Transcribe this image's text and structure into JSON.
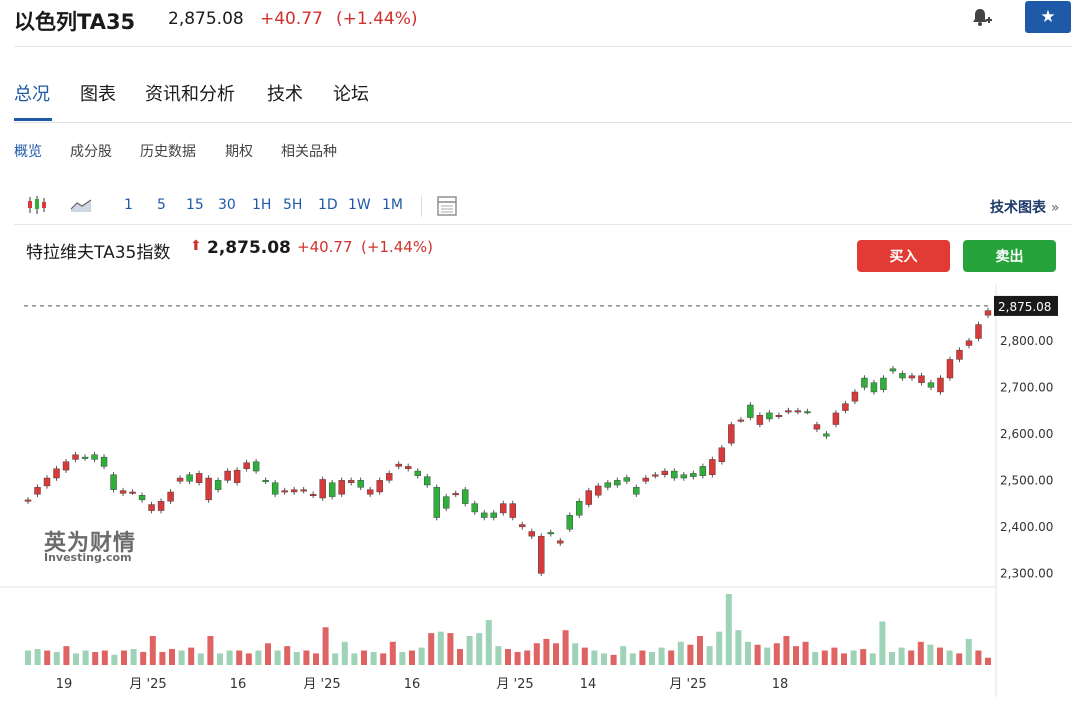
{
  "header": {
    "title": "以色列TA35",
    "price": "2,875.08",
    "change": "+40.77",
    "change_pct": "(+1.44%)",
    "bell_icon": "bell-plus-icon",
    "star_icon": "star-icon",
    "star_glyph": "★"
  },
  "main_tabs": [
    "总况",
    "图表",
    "资讯和分析",
    "技术",
    "论坛"
  ],
  "sub_tabs": [
    "概览",
    "成分股",
    "历史数据",
    "期权",
    "相关品种"
  ],
  "toolbar": {
    "timeframes": [
      "1",
      "5",
      "15",
      "30",
      "1H",
      "5H",
      "1D",
      "1W",
      "1M"
    ],
    "tech_chart": "技术图表",
    "tech_chart_arrow": "»"
  },
  "instrument": {
    "name": "特拉维夫TA35指数",
    "arrow": "⬆",
    "price": "2,875.08",
    "change": "+40.77",
    "change_pct": "(+1.44%)",
    "buy_label": "买入",
    "sell_label": "卖出"
  },
  "watermark": {
    "cn": "英为财情",
    "en": "Investing.com"
  },
  "colors": {
    "up": "#2fae3c",
    "down": "#d63a3a",
    "brand": "#1e5aa8",
    "vol_up": "#9fd3b7",
    "vol_down": "#e06363"
  },
  "chart_data": {
    "type": "candlestick",
    "y_ticks": [
      "2,300.00",
      "2,400.00",
      "2,500.00",
      "2,600.00",
      "2,700.00",
      "2,800.00"
    ],
    "last_price_label": "2,875.08",
    "ylim": [
      2275,
      2920
    ],
    "x_ticks": [
      "19",
      "月 '25",
      "16",
      "月 '25",
      "16",
      "月 '25",
      "14",
      "月 '25",
      "18",
      "",
      ""
    ],
    "candles": [
      [
        2455,
        2458,
        "down"
      ],
      [
        2470,
        2485,
        "down"
      ],
      [
        2488,
        2505,
        "down"
      ],
      [
        2505,
        2525,
        "down"
      ],
      [
        2522,
        2540,
        "down"
      ],
      [
        2545,
        2555,
        "down"
      ],
      [
        2548,
        2550,
        "up"
      ],
      [
        2555,
        2545,
        "up"
      ],
      [
        2550,
        2530,
        "up"
      ],
      [
        2512,
        2480,
        "up"
      ],
      [
        2478,
        2472,
        "down"
      ],
      [
        2475,
        2475,
        "down"
      ],
      [
        2468,
        2458,
        "up"
      ],
      [
        2448,
        2435,
        "down"
      ],
      [
        2435,
        2455,
        "down"
      ],
      [
        2455,
        2475,
        "down"
      ],
      [
        2498,
        2505,
        "down"
      ],
      [
        2512,
        2498,
        "up"
      ],
      [
        2495,
        2515,
        "down"
      ],
      [
        2458,
        2505,
        "down"
      ],
      [
        2500,
        2480,
        "up"
      ],
      [
        2500,
        2520,
        "down"
      ],
      [
        2522,
        2495,
        "down"
      ],
      [
        2525,
        2538,
        "down"
      ],
      [
        2540,
        2520,
        "up"
      ],
      [
        2500,
        2498,
        "up"
      ],
      [
        2495,
        2470,
        "up"
      ],
      [
        2478,
        2475,
        "down"
      ],
      [
        2480,
        2475,
        "down"
      ],
      [
        2478,
        2480,
        "down"
      ],
      [
        2470,
        2468,
        "down"
      ],
      [
        2462,
        2502,
        "down"
      ],
      [
        2495,
        2465,
        "up"
      ],
      [
        2470,
        2500,
        "down"
      ],
      [
        2495,
        2500,
        "down"
      ],
      [
        2500,
        2485,
        "up"
      ],
      [
        2480,
        2470,
        "down"
      ],
      [
        2475,
        2500,
        "down"
      ],
      [
        2500,
        2515,
        "down"
      ],
      [
        2530,
        2535,
        "down"
      ],
      [
        2530,
        2525,
        "down"
      ],
      [
        2520,
        2510,
        "up"
      ],
      [
        2508,
        2490,
        "up"
      ],
      [
        2485,
        2420,
        "up"
      ],
      [
        2440,
        2465,
        "up"
      ],
      [
        2470,
        2472,
        "down"
      ],
      [
        2480,
        2450,
        "up"
      ],
      [
        2450,
        2432,
        "up"
      ],
      [
        2430,
        2420,
        "up"
      ],
      [
        2420,
        2430,
        "up"
      ],
      [
        2430,
        2450,
        "down"
      ],
      [
        2450,
        2420,
        "down"
      ],
      [
        2405,
        2400,
        "down"
      ],
      [
        2390,
        2380,
        "down"
      ],
      [
        2380,
        2300,
        "down"
      ],
      [
        2385,
        2388,
        "up"
      ],
      [
        2365,
        2370,
        "down"
      ],
      [
        2395,
        2425,
        "up"
      ],
      [
        2455,
        2425,
        "up"
      ],
      [
        2448,
        2478,
        "down"
      ],
      [
        2468,
        2488,
        "down"
      ],
      [
        2485,
        2495,
        "up"
      ],
      [
        2500,
        2490,
        "up"
      ],
      [
        2498,
        2506,
        "up"
      ],
      [
        2470,
        2485,
        "up"
      ],
      [
        2498,
        2505,
        "down"
      ],
      [
        2510,
        2512,
        "down"
      ],
      [
        2512,
        2520,
        "down"
      ],
      [
        2520,
        2505,
        "up"
      ],
      [
        2505,
        2512,
        "up"
      ],
      [
        2508,
        2515,
        "up"
      ],
      [
        2530,
        2510,
        "up"
      ],
      [
        2512,
        2545,
        "down"
      ],
      [
        2540,
        2570,
        "down"
      ],
      [
        2580,
        2620,
        "down"
      ],
      [
        2630,
        2630,
        "down"
      ],
      [
        2635,
        2662,
        "up"
      ],
      [
        2620,
        2640,
        "down"
      ],
      [
        2632,
        2645,
        "up"
      ],
      [
        2640,
        2638,
        "down"
      ],
      [
        2650,
        2648,
        "down"
      ],
      [
        2650,
        2648,
        "down"
      ],
      [
        2648,
        2648,
        "up"
      ],
      [
        2620,
        2610,
        "down"
      ],
      [
        2595,
        2600,
        "up"
      ],
      [
        2620,
        2645,
        "down"
      ],
      [
        2650,
        2665,
        "down"
      ],
      [
        2670,
        2690,
        "down"
      ],
      [
        2700,
        2720,
        "up"
      ],
      [
        2710,
        2690,
        "up"
      ],
      [
        2720,
        2695,
        "up"
      ],
      [
        2735,
        2740,
        "up"
      ],
      [
        2730,
        2720,
        "up"
      ],
      [
        2725,
        2720,
        "down"
      ],
      [
        2710,
        2725,
        "down"
      ],
      [
        2710,
        2700,
        "up"
      ],
      [
        2690,
        2720,
        "down"
      ],
      [
        2720,
        2760,
        "down"
      ],
      [
        2760,
        2780,
        "down"
      ],
      [
        2790,
        2800,
        "down"
      ],
      [
        2805,
        2835,
        "down"
      ],
      [
        2855,
        2865,
        "down"
      ]
    ],
    "volumes": [
      [
        1.0,
        "up"
      ],
      [
        1.1,
        "up"
      ],
      [
        1.0,
        "down"
      ],
      [
        0.9,
        "up"
      ],
      [
        1.3,
        "down"
      ],
      [
        0.8,
        "up"
      ],
      [
        1.0,
        "up"
      ],
      [
        0.9,
        "down"
      ],
      [
        1.0,
        "down"
      ],
      [
        0.7,
        "up"
      ],
      [
        1.0,
        "down"
      ],
      [
        1.1,
        "up"
      ],
      [
        0.9,
        "down"
      ],
      [
        2.0,
        "down"
      ],
      [
        0.9,
        "down"
      ],
      [
        1.1,
        "down"
      ],
      [
        1.0,
        "up"
      ],
      [
        1.2,
        "down"
      ],
      [
        0.8,
        "up"
      ],
      [
        2.0,
        "down"
      ],
      [
        0.8,
        "up"
      ],
      [
        1.0,
        "up"
      ],
      [
        1.0,
        "down"
      ],
      [
        0.8,
        "down"
      ],
      [
        1.0,
        "up"
      ],
      [
        1.5,
        "down"
      ],
      [
        1.0,
        "up"
      ],
      [
        1.3,
        "down"
      ],
      [
        0.9,
        "up"
      ],
      [
        1.0,
        "down"
      ],
      [
        0.8,
        "down"
      ],
      [
        2.6,
        "down"
      ],
      [
        0.8,
        "up"
      ],
      [
        1.6,
        "up"
      ],
      [
        0.8,
        "up"
      ],
      [
        1.0,
        "down"
      ],
      [
        0.9,
        "up"
      ],
      [
        0.8,
        "down"
      ],
      [
        1.6,
        "down"
      ],
      [
        0.9,
        "up"
      ],
      [
        1.0,
        "down"
      ],
      [
        1.2,
        "up"
      ],
      [
        2.2,
        "down"
      ],
      [
        2.3,
        "up"
      ],
      [
        2.2,
        "down"
      ],
      [
        1.1,
        "down"
      ],
      [
        2.0,
        "up"
      ],
      [
        2.2,
        "up"
      ],
      [
        3.1,
        "up"
      ],
      [
        1.3,
        "up"
      ],
      [
        1.1,
        "down"
      ],
      [
        0.9,
        "down"
      ],
      [
        1.0,
        "down"
      ],
      [
        1.5,
        "down"
      ],
      [
        1.8,
        "down"
      ],
      [
        1.5,
        "down"
      ],
      [
        2.4,
        "down"
      ],
      [
        1.5,
        "up"
      ],
      [
        1.2,
        "down"
      ],
      [
        1.0,
        "up"
      ],
      [
        0.8,
        "up"
      ],
      [
        0.7,
        "down"
      ],
      [
        1.3,
        "up"
      ],
      [
        0.8,
        "up"
      ],
      [
        1.0,
        "down"
      ],
      [
        0.9,
        "up"
      ],
      [
        1.2,
        "up"
      ],
      [
        1.0,
        "down"
      ],
      [
        1.6,
        "up"
      ],
      [
        1.4,
        "down"
      ],
      [
        2.0,
        "down"
      ],
      [
        1.3,
        "up"
      ],
      [
        2.3,
        "up"
      ],
      [
        4.9,
        "up"
      ],
      [
        2.4,
        "up"
      ],
      [
        1.6,
        "up"
      ],
      [
        1.4,
        "down"
      ],
      [
        1.2,
        "up"
      ],
      [
        1.5,
        "down"
      ],
      [
        2.0,
        "down"
      ],
      [
        1.3,
        "down"
      ],
      [
        1.6,
        "down"
      ],
      [
        0.9,
        "up"
      ],
      [
        1.0,
        "down"
      ],
      [
        1.2,
        "down"
      ],
      [
        0.8,
        "down"
      ],
      [
        1.0,
        "up"
      ],
      [
        1.1,
        "down"
      ],
      [
        0.8,
        "up"
      ],
      [
        3.0,
        "up"
      ],
      [
        0.9,
        "up"
      ],
      [
        1.2,
        "up"
      ],
      [
        1.0,
        "down"
      ],
      [
        1.6,
        "down"
      ],
      [
        1.4,
        "up"
      ],
      [
        1.2,
        "down"
      ],
      [
        1.0,
        "up"
      ],
      [
        0.8,
        "down"
      ],
      [
        1.8,
        "up"
      ],
      [
        1.0,
        "down"
      ],
      [
        0.5,
        "down"
      ]
    ]
  }
}
